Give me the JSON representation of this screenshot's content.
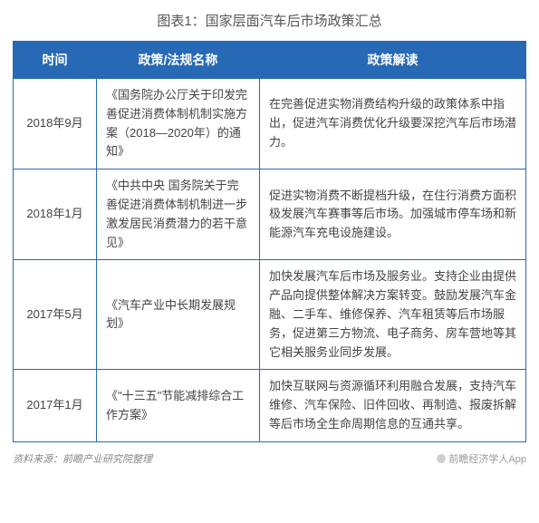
{
  "title": "图表1：国家层面汽车后市场政策汇总",
  "header_background": "#2869b5",
  "border_color": "#2869b5",
  "columns": [
    "时间",
    "政策/法规名称",
    "政策解读"
  ],
  "rows": [
    {
      "time": "2018年9月",
      "name": "《国务院办公厅关于印发完善促进消费体制机制实施方案（2018—2020年）的通知》",
      "desc": "在完善促进实物消费结构升级的政策体系中指出，促进汽车消费优化升级要深挖汽车后市场潜力。"
    },
    {
      "time": "2018年1月",
      "name": "《中共中央 国务院关于完善促进消费体制机制进一步激发居民消费潜力的若干意见》",
      "desc": "促进实物消费不断提档升级，在住行消费方面积极发展汽车赛事等后市场。加强城市停车场和新能源汽车充电设施建设。"
    },
    {
      "time": "2017年5月",
      "name": "《汽车产业中长期发展规划》",
      "desc": "加快发展汽车后市场及服务业。支持企业由提供产品向提供整体解决方案转变。鼓励发展汽车金融、二手车、维修保养、汽车租赁等后市场服务，促进第三方物流、电子商务、房车营地等其它相关服务业同步发展。"
    },
    {
      "time": "2017年1月",
      "name": "《\"十三五\"节能减排综合工作方案》",
      "desc": "加快互联网与资源循环利用融合发展，支持汽车维修、汽车保险、旧件回收、再制造、报废拆解等后市场全生命周期信息的互通共享。"
    }
  ],
  "footer_left": "资料来源：前瞻产业研究院整理",
  "footer_right": "前瞻经济学人App"
}
